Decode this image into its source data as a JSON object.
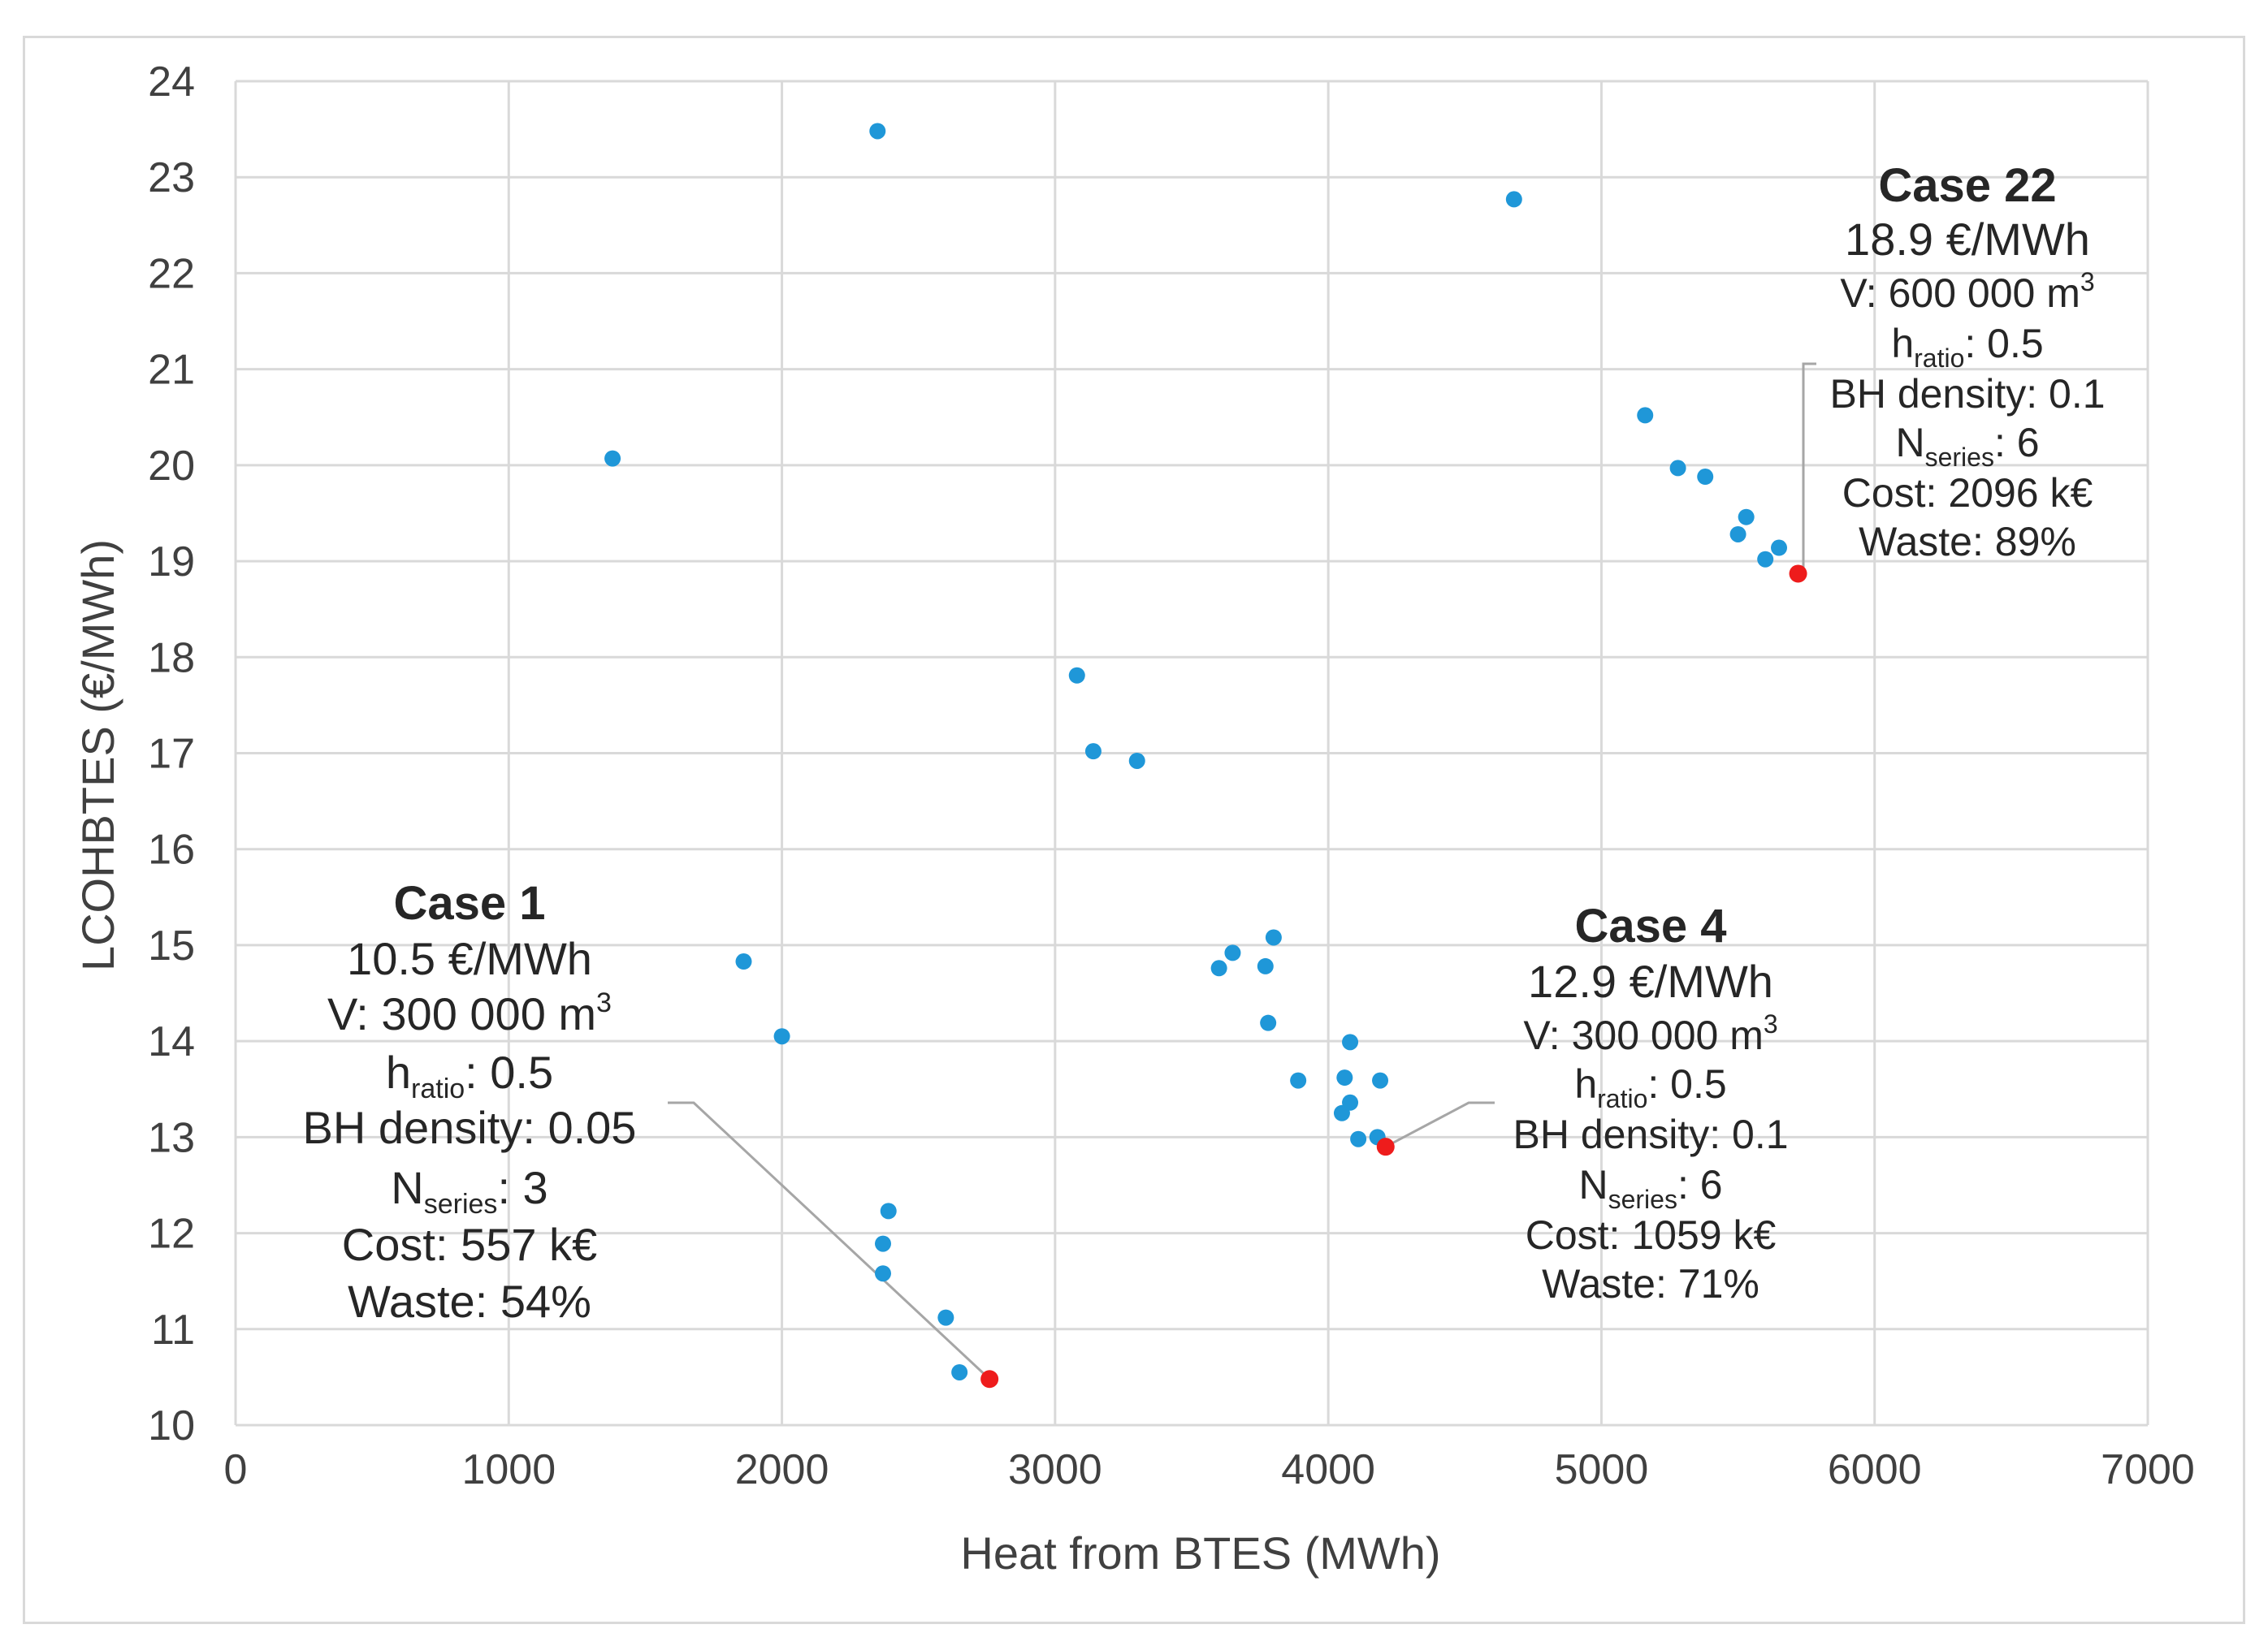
{
  "chart_data": {
    "type": "scatter",
    "xlabel": "Heat from BTES (MWh)",
    "ylabel": "LCOHBTES (€/MWh)",
    "xlim": [
      0,
      7000
    ],
    "ylim": [
      10,
      24
    ],
    "x_ticks": [
      "0",
      "1000",
      "2000",
      "3000",
      "4000",
      "5000",
      "6000",
      "7000"
    ],
    "y_ticks": [
      "10",
      "11",
      "12",
      "13",
      "14",
      "15",
      "16",
      "17",
      "18",
      "19",
      "20",
      "21",
      "22",
      "23",
      "24"
    ],
    "grid": true,
    "colors": {
      "series": "#1f97d8",
      "highlight": "#ee1c1c",
      "grid": "#d9d9d9",
      "leader": "#a6a6a6"
    },
    "series": [
      {
        "name": "cases",
        "points": [
          {
            "x": 1380,
            "y": 20.07
          },
          {
            "x": 1860,
            "y": 14.83
          },
          {
            "x": 2000,
            "y": 14.05
          },
          {
            "x": 2350,
            "y": 23.48
          },
          {
            "x": 2370,
            "y": 11.89
          },
          {
            "x": 2370,
            "y": 11.58
          },
          {
            "x": 2390,
            "y": 12.23
          },
          {
            "x": 2600,
            "y": 11.12
          },
          {
            "x": 2650,
            "y": 10.55
          },
          {
            "x": 3080,
            "y": 17.81
          },
          {
            "x": 3140,
            "y": 17.02
          },
          {
            "x": 3300,
            "y": 16.92
          },
          {
            "x": 3600,
            "y": 14.76
          },
          {
            "x": 3650,
            "y": 14.92
          },
          {
            "x": 3770,
            "y": 14.78
          },
          {
            "x": 3780,
            "y": 14.19
          },
          {
            "x": 3800,
            "y": 15.08
          },
          {
            "x": 3890,
            "y": 13.59
          },
          {
            "x": 4050,
            "y": 13.25
          },
          {
            "x": 4060,
            "y": 13.62
          },
          {
            "x": 4080,
            "y": 13.99
          },
          {
            "x": 4080,
            "y": 13.36
          },
          {
            "x": 4110,
            "y": 12.98
          },
          {
            "x": 4180,
            "y": 13.0
          },
          {
            "x": 4190,
            "y": 13.59
          },
          {
            "x": 4680,
            "y": 22.77
          },
          {
            "x": 5160,
            "y": 20.52
          },
          {
            "x": 5280,
            "y": 19.97
          },
          {
            "x": 5380,
            "y": 19.88
          },
          {
            "x": 5500,
            "y": 19.28
          },
          {
            "x": 5530,
            "y": 19.46
          },
          {
            "x": 5600,
            "y": 19.02
          },
          {
            "x": 5650,
            "y": 19.14
          }
        ]
      },
      {
        "name": "highlighted",
        "points": [
          {
            "x": 2760,
            "y": 10.48
          },
          {
            "x": 4210,
            "y": 12.9
          },
          {
            "x": 5720,
            "y": 18.87
          }
        ]
      }
    ],
    "annotations": [
      {
        "id": "case1",
        "title": "Case 1",
        "price": "10.5 €/MWh",
        "volume": "V: 300 000 m",
        "volume_sup": "3",
        "hratio_main": "h",
        "hratio_sub": "ratio",
        "hratio_value": ": 0.5",
        "bh_density": "BH density: 0.05",
        "nseries_main": "N",
        "nseries_sub": "series",
        "nseries_value": ": 3",
        "cost": "Cost: 557 k€",
        "waste": "Waste: 54%"
      },
      {
        "id": "case4",
        "title": "Case 4",
        "price": "12.9 €/MWh",
        "volume": "V: 300 000 m",
        "volume_sup": "3",
        "hratio_main": "h",
        "hratio_sub": "ratio",
        "hratio_value": ": 0.5",
        "bh_density": "BH density: 0.1",
        "nseries_main": "N",
        "nseries_sub": "series",
        "nseries_value": ": 6",
        "cost": "Cost: 1059 k€",
        "waste": "Waste: 71%"
      },
      {
        "id": "case22",
        "title": "Case 22",
        "price": "18.9 €/MWh",
        "volume": "V: 600 000 m",
        "volume_sup": "3",
        "hratio_main": "h",
        "hratio_sub": "ratio",
        "hratio_value": ": 0.5",
        "bh_density": "BH density: 0.1",
        "nseries_main": "N",
        "nseries_sub": "series",
        "nseries_value": ": 6",
        "cost": "Cost: 2096 k€",
        "waste": "Waste: 89%"
      }
    ]
  }
}
